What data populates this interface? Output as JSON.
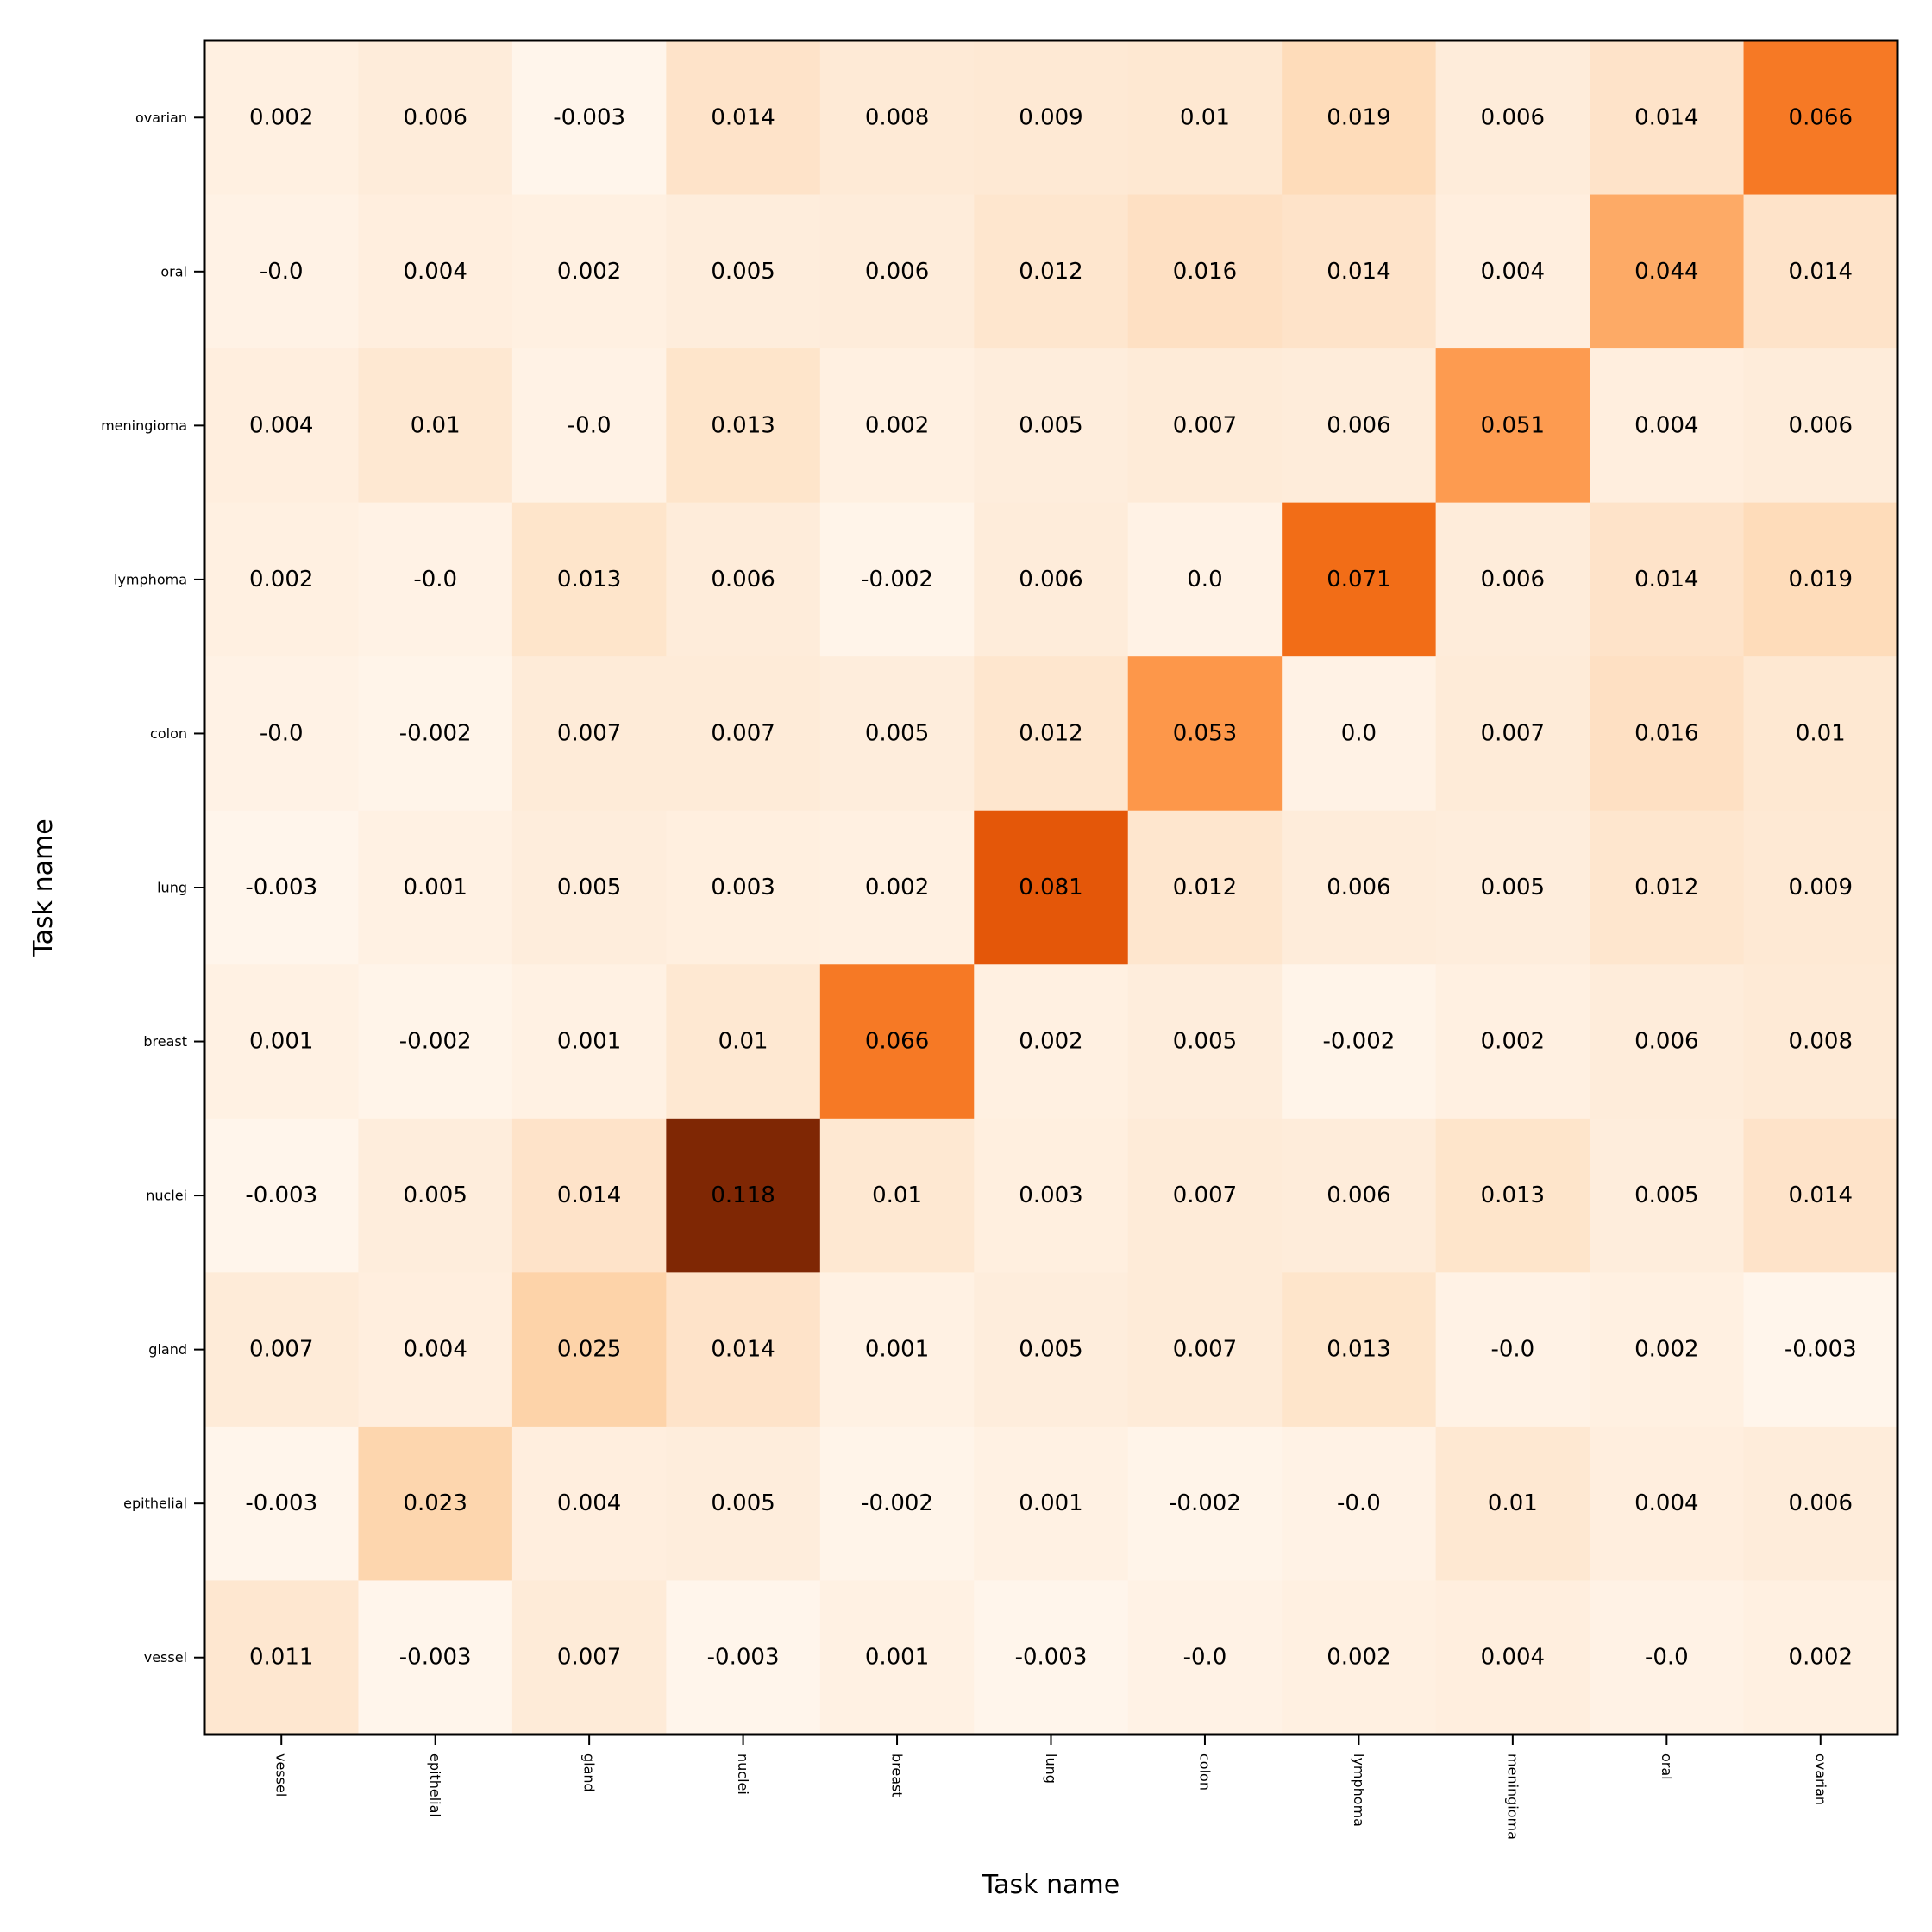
{
  "chart_data": {
    "type": "heatmap",
    "xlabel": "Task name",
    "ylabel": "Task name",
    "x_categories": [
      "vessel",
      "epithelial",
      "gland",
      "nuclei",
      "breast",
      "lung",
      "colon",
      "lymphoma",
      "meningioma",
      "oral",
      "ovarian"
    ],
    "y_categories_top_to_bottom": [
      "ovarian",
      "oral",
      "meningioma",
      "lymphoma",
      "colon",
      "lung",
      "breast",
      "nuclei",
      "gland",
      "epithelial",
      "vessel"
    ],
    "values": [
      [
        "0.002",
        "0.006",
        "-0.003",
        "0.014",
        "0.008",
        "0.009",
        "0.01",
        "0.019",
        "0.006",
        "0.014",
        "0.066"
      ],
      [
        "-0.0",
        "0.004",
        "0.002",
        "0.005",
        "0.006",
        "0.012",
        "0.016",
        "0.014",
        "0.004",
        "0.044",
        "0.014"
      ],
      [
        "0.004",
        "0.01",
        "-0.0",
        "0.013",
        "0.002",
        "0.005",
        "0.007",
        "0.006",
        "0.051",
        "0.004",
        "0.006"
      ],
      [
        "0.002",
        "-0.0",
        "0.013",
        "0.006",
        "-0.002",
        "0.006",
        "0.0",
        "0.071",
        "0.006",
        "0.014",
        "0.019"
      ],
      [
        "-0.0",
        "-0.002",
        "0.007",
        "0.007",
        "0.005",
        "0.012",
        "0.053",
        "0.0",
        "0.007",
        "0.016",
        "0.01"
      ],
      [
        "-0.003",
        "0.001",
        "0.005",
        "0.003",
        "0.002",
        "0.081",
        "0.012",
        "0.006",
        "0.005",
        "0.012",
        "0.009"
      ],
      [
        "0.001",
        "-0.002",
        "0.001",
        "0.01",
        "0.066",
        "0.002",
        "0.005",
        "-0.002",
        "0.002",
        "0.006",
        "0.008"
      ],
      [
        "-0.003",
        "0.005",
        "0.014",
        "0.118",
        "0.01",
        "0.003",
        "0.007",
        "0.006",
        "0.013",
        "0.005",
        "0.014"
      ],
      [
        "0.007",
        "0.004",
        "0.025",
        "0.014",
        "0.001",
        "0.005",
        "0.007",
        "0.013",
        "-0.0",
        "0.002",
        "-0.003"
      ],
      [
        "-0.003",
        "0.023",
        "0.004",
        "0.005",
        "-0.002",
        "0.001",
        "-0.002",
        "-0.0",
        "0.01",
        "0.004",
        "0.006"
      ],
      [
        "0.011",
        "-0.003",
        "0.007",
        "-0.003",
        "0.001",
        "-0.003",
        "-0.0",
        "0.002",
        "0.004",
        "-0.0",
        "0.002"
      ]
    ],
    "color_range": [
      -0.003,
      0.118
    ],
    "colormap": [
      "#fff5eb",
      "#fee6ce",
      "#fdd0a2",
      "#fdae6b",
      "#fd8d3c",
      "#f16913",
      "#d94801",
      "#a63603",
      "#7f2704"
    ],
    "grid": false,
    "legend": "none"
  }
}
